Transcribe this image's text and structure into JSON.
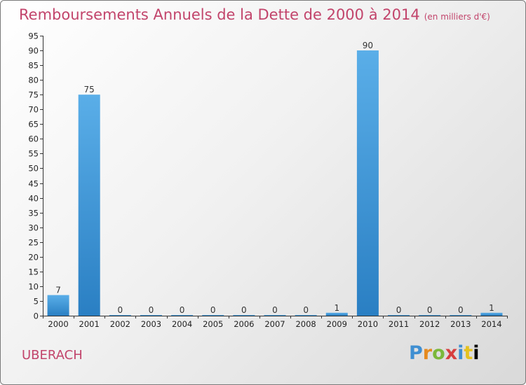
{
  "header": {
    "title": "Remboursements Annuels de la Dette de 2000 à 2014",
    "unit": "(en milliers d'€)"
  },
  "commune": "UBERACH",
  "logo": {
    "letters": [
      "P",
      "r",
      "o",
      "x",
      "i",
      "t",
      "i"
    ]
  },
  "colors": {
    "title": "#c2446b",
    "bar_light": "#5aaee8",
    "bar_dark": "#2a7fc3"
  },
  "chart_data": {
    "type": "bar",
    "title": "Remboursements Annuels de la Dette de 2000 à 2014",
    "categories": [
      "2000",
      "2001",
      "2002",
      "2003",
      "2004",
      "2005",
      "2006",
      "2007",
      "2008",
      "2009",
      "2010",
      "2011",
      "2012",
      "2013",
      "2014"
    ],
    "values": [
      7,
      75,
      0,
      0,
      0,
      0,
      0,
      0,
      0,
      1,
      90,
      0,
      0,
      0,
      1
    ],
    "ylim": [
      0,
      95
    ],
    "yticks": [
      0,
      5,
      10,
      15,
      20,
      25,
      30,
      35,
      40,
      45,
      50,
      55,
      60,
      65,
      70,
      75,
      80,
      85,
      90,
      95
    ],
    "xlabel": "",
    "ylabel": "",
    "grid": false,
    "legend": "none"
  }
}
